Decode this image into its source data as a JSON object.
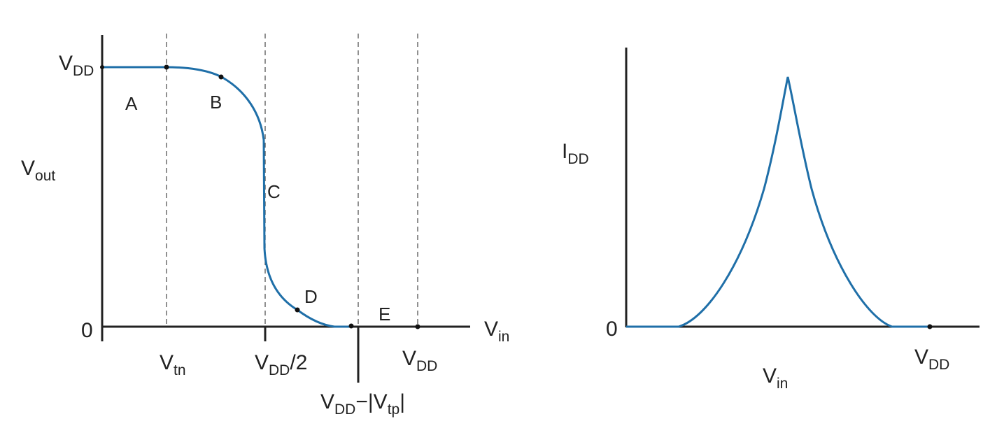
{
  "colors": {
    "curve": "#1f6fa8",
    "axis": "#222222",
    "guide": "#555555",
    "text": "#222222"
  },
  "vtc": {
    "y_axis": {
      "main": "V",
      "sub": "out"
    },
    "x_axis": {
      "main": "V",
      "sub": "in"
    },
    "y_top": {
      "main": "V",
      "sub": "DD"
    },
    "origin": "0",
    "regions": [
      "A",
      "B",
      "C",
      "D",
      "E"
    ],
    "x_ticks": {
      "vtn": {
        "main": "V",
        "sub": "tn"
      },
      "half": {
        "main": "V",
        "sub": "DD",
        "suffix": "/2"
      },
      "vtp": {
        "main": "V",
        "sub": "DD",
        "mid": "−|V",
        "sub2": "tp",
        "suffix": "|"
      },
      "vdd": {
        "main": "V",
        "sub": "DD"
      }
    }
  },
  "idd": {
    "y_axis": {
      "main": "I",
      "sub": "DD"
    },
    "x_axis": {
      "main": "V",
      "sub": "in"
    },
    "origin": "0",
    "x_tick": {
      "main": "V",
      "sub": "DD"
    }
  }
}
